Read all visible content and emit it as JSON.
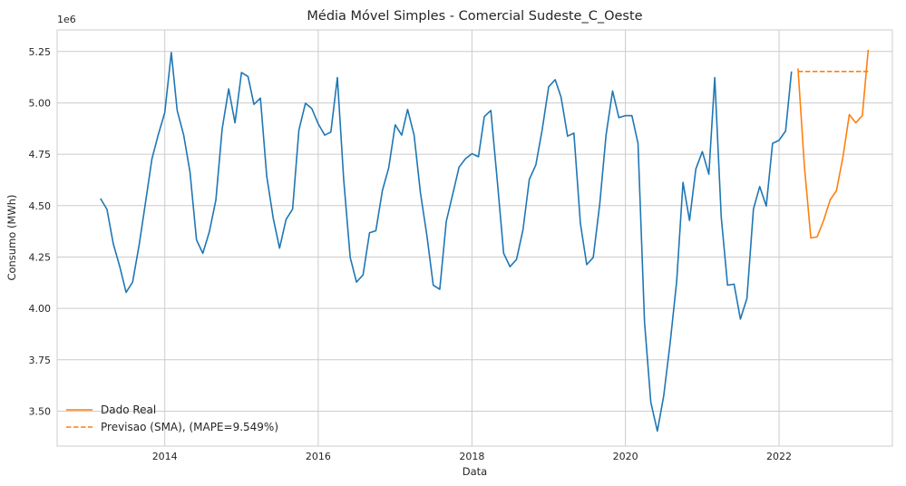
{
  "chart_data": {
    "type": "line",
    "title": "Média Móvel Simples - Comercial Sudeste_C_Oeste",
    "xlabel": "Data",
    "ylabel": "Consumo (MWh)",
    "y_offset_text": "1e6",
    "y_multiplier": 1000000,
    "xlim": [
      "2012-08-07",
      "2023-06-24"
    ],
    "ylim": [
      3.33,
      5.355
    ],
    "grid": true,
    "legend_position": "lower-left",
    "x_ticks": [
      {
        "value": "2014-01-01",
        "label": "2014"
      },
      {
        "value": "2016-01-01",
        "label": "2016"
      },
      {
        "value": "2018-01-01",
        "label": "2018"
      },
      {
        "value": "2020-01-01",
        "label": "2020"
      },
      {
        "value": "2022-01-01",
        "label": "2022"
      }
    ],
    "y_ticks": [
      {
        "value": 3.5,
        "label": "3.50"
      },
      {
        "value": 3.75,
        "label": "3.75"
      },
      {
        "value": 4.0,
        "label": "4.00"
      },
      {
        "value": 4.25,
        "label": "4.25"
      },
      {
        "value": 4.5,
        "label": "4.50"
      },
      {
        "value": 4.75,
        "label": "4.75"
      },
      {
        "value": 5.0,
        "label": "5.00"
      },
      {
        "value": 5.25,
        "label": "5.25"
      }
    ],
    "series": [
      {
        "color": "#1f77b4",
        "dash": "solid",
        "points": [
          [
            "2013-03-01",
            4.535
          ],
          [
            "2013-04-01",
            4.482
          ],
          [
            "2013-05-01",
            4.315
          ],
          [
            "2013-06-01",
            4.203
          ],
          [
            "2013-07-01",
            4.078
          ],
          [
            "2013-08-01",
            4.128
          ],
          [
            "2013-09-01",
            4.308
          ],
          [
            "2013-10-01",
            4.513
          ],
          [
            "2013-11-01",
            4.728
          ],
          [
            "2013-12-01",
            4.845
          ],
          [
            "2014-01-01",
            4.953
          ],
          [
            "2014-02-01",
            5.245
          ],
          [
            "2014-03-01",
            4.963
          ],
          [
            "2014-04-01",
            4.843
          ],
          [
            "2014-05-01",
            4.663
          ],
          [
            "2014-06-01",
            4.333
          ],
          [
            "2014-07-01",
            4.268
          ],
          [
            "2014-08-01",
            4.373
          ],
          [
            "2014-09-01",
            4.527
          ],
          [
            "2014-10-01",
            4.873
          ],
          [
            "2014-11-01",
            5.068
          ],
          [
            "2014-12-01",
            4.903
          ],
          [
            "2015-01-01",
            5.148
          ],
          [
            "2015-02-01",
            5.128
          ],
          [
            "2015-03-01",
            4.993
          ],
          [
            "2015-04-01",
            5.023
          ],
          [
            "2015-05-01",
            4.643
          ],
          [
            "2015-06-01",
            4.438
          ],
          [
            "2015-07-01",
            4.293
          ],
          [
            "2015-08-01",
            4.433
          ],
          [
            "2015-09-01",
            4.483
          ],
          [
            "2015-10-01",
            4.868
          ],
          [
            "2015-11-01",
            4.998
          ],
          [
            "2015-12-01",
            4.973
          ],
          [
            "2016-01-01",
            4.898
          ],
          [
            "2016-02-01",
            4.843
          ],
          [
            "2016-03-01",
            4.858
          ],
          [
            "2016-04-01",
            5.123
          ],
          [
            "2016-05-01",
            4.628
          ],
          [
            "2016-06-01",
            4.248
          ],
          [
            "2016-07-01",
            4.128
          ],
          [
            "2016-08-01",
            4.163
          ],
          [
            "2016-09-01",
            4.368
          ],
          [
            "2016-10-01",
            4.378
          ],
          [
            "2016-11-01",
            4.573
          ],
          [
            "2016-12-01",
            4.683
          ],
          [
            "2017-01-01",
            4.893
          ],
          [
            "2017-02-01",
            4.843
          ],
          [
            "2017-03-01",
            4.968
          ],
          [
            "2017-04-01",
            4.843
          ],
          [
            "2017-05-01",
            4.563
          ],
          [
            "2017-06-01",
            4.353
          ],
          [
            "2017-07-01",
            4.113
          ],
          [
            "2017-08-01",
            4.093
          ],
          [
            "2017-09-01",
            4.423
          ],
          [
            "2017-10-01",
            4.553
          ],
          [
            "2017-11-01",
            4.688
          ],
          [
            "2017-12-01",
            4.728
          ],
          [
            "2018-01-01",
            4.753
          ],
          [
            "2018-02-01",
            4.738
          ],
          [
            "2018-03-01",
            4.933
          ],
          [
            "2018-04-01",
            4.963
          ],
          [
            "2018-05-01",
            4.628
          ],
          [
            "2018-06-01",
            4.268
          ],
          [
            "2018-07-01",
            4.203
          ],
          [
            "2018-08-01",
            4.238
          ],
          [
            "2018-09-01",
            4.383
          ],
          [
            "2018-10-01",
            4.628
          ],
          [
            "2018-11-01",
            4.698
          ],
          [
            "2018-12-01",
            4.868
          ],
          [
            "2019-01-01",
            5.078
          ],
          [
            "2019-02-01",
            5.113
          ],
          [
            "2019-03-01",
            5.028
          ],
          [
            "2019-04-01",
            4.838
          ],
          [
            "2019-05-01",
            4.853
          ],
          [
            "2019-06-01",
            4.413
          ],
          [
            "2019-07-01",
            4.213
          ],
          [
            "2019-08-01",
            4.248
          ],
          [
            "2019-09-01",
            4.508
          ],
          [
            "2019-10-01",
            4.843
          ],
          [
            "2019-11-01",
            5.058
          ],
          [
            "2019-12-01",
            4.928
          ],
          [
            "2020-01-01",
            4.938
          ],
          [
            "2020-02-01",
            4.938
          ],
          [
            "2020-03-01",
            4.803
          ],
          [
            "2020-04-01",
            3.933
          ],
          [
            "2020-05-01",
            3.543
          ],
          [
            "2020-06-01",
            3.403
          ],
          [
            "2020-07-01",
            3.573
          ],
          [
            "2020-08-01",
            3.833
          ],
          [
            "2020-09-01",
            4.133
          ],
          [
            "2020-10-01",
            4.613
          ],
          [
            "2020-11-01",
            4.428
          ],
          [
            "2020-12-01",
            4.678
          ],
          [
            "2021-01-01",
            4.763
          ],
          [
            "2021-02-01",
            4.653
          ],
          [
            "2021-03-01",
            5.123
          ],
          [
            "2021-04-01",
            4.443
          ],
          [
            "2021-05-01",
            4.113
          ],
          [
            "2021-06-01",
            4.118
          ],
          [
            "2021-07-01",
            3.948
          ],
          [
            "2021-08-01",
            4.048
          ],
          [
            "2021-09-01",
            4.483
          ],
          [
            "2021-10-01",
            4.593
          ],
          [
            "2021-11-01",
            4.498
          ],
          [
            "2021-12-01",
            4.803
          ],
          [
            "2022-01-01",
            4.818
          ],
          [
            "2022-02-01",
            4.863
          ],
          [
            "2022-03-01",
            5.153
          ]
        ]
      },
      {
        "name": "Dado Real",
        "color": "#ff7f0e",
        "dash": "solid",
        "points": [
          [
            "2022-04-01",
            5.168
          ],
          [
            "2022-05-01",
            4.698
          ],
          [
            "2022-06-01",
            4.343
          ],
          [
            "2022-07-01",
            4.348
          ],
          [
            "2022-08-01",
            4.428
          ],
          [
            "2022-09-01",
            4.528
          ],
          [
            "2022-10-01",
            4.573
          ],
          [
            "2022-11-01",
            4.738
          ],
          [
            "2022-12-01",
            4.943
          ],
          [
            "2023-01-01",
            4.903
          ],
          [
            "2023-02-01",
            4.938
          ],
          [
            "2023-03-01",
            5.258
          ]
        ]
      },
      {
        "name": "Previsao (SMA), (MAPE=9.549%)",
        "color": "#ff7f0e",
        "dash": "dashed",
        "points": [
          [
            "2022-04-01",
            5.153
          ],
          [
            "2022-05-01",
            5.153
          ],
          [
            "2022-06-01",
            5.153
          ],
          [
            "2022-07-01",
            5.153
          ],
          [
            "2022-08-01",
            5.153
          ],
          [
            "2022-09-01",
            5.153
          ],
          [
            "2022-10-01",
            5.153
          ],
          [
            "2022-11-01",
            5.153
          ],
          [
            "2022-12-01",
            5.153
          ],
          [
            "2023-01-01",
            5.153
          ],
          [
            "2023-02-01",
            5.153
          ],
          [
            "2023-03-01",
            5.153
          ]
        ]
      }
    ]
  }
}
